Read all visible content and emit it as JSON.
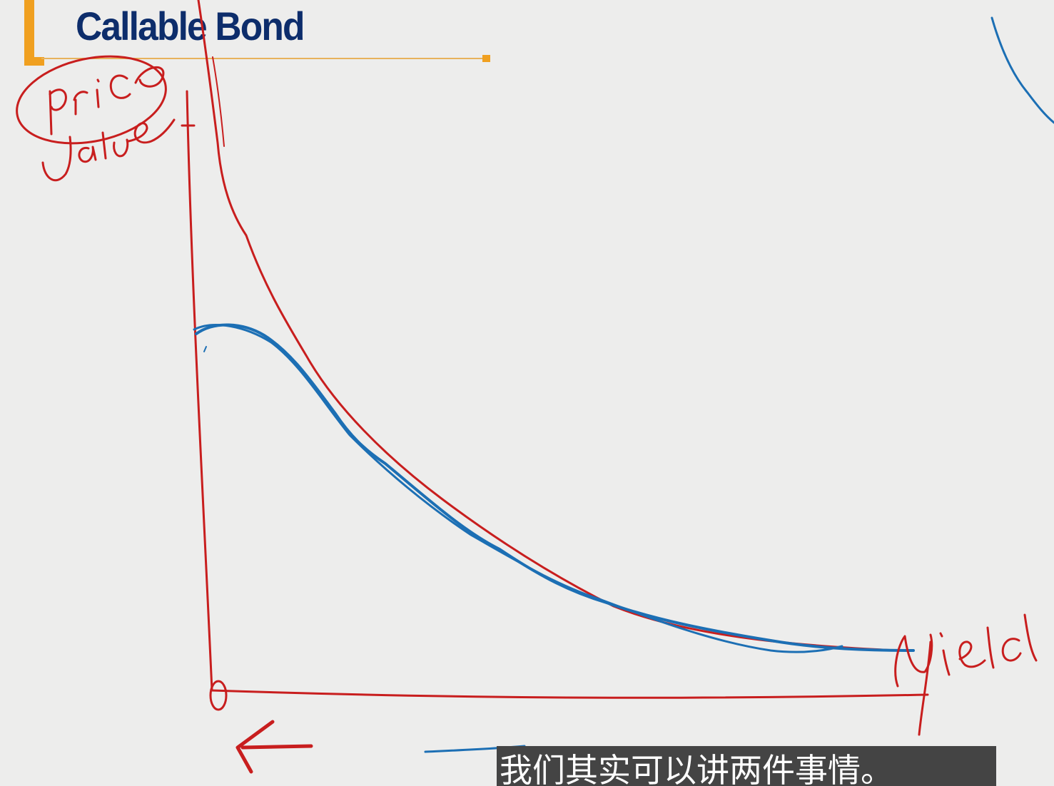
{
  "slide": {
    "title": "Callable Bond",
    "accent_color": "#f0a020",
    "title_color": "#0d2d6b"
  },
  "annotations": {
    "y_axis_label": "price value",
    "x_axis_label": "yield",
    "origin_label": "0",
    "ink_red": "#c81e1e",
    "ink_blue": "#1c6fb4"
  },
  "subtitle": {
    "text": "我们其实可以讲两件事情。"
  }
}
